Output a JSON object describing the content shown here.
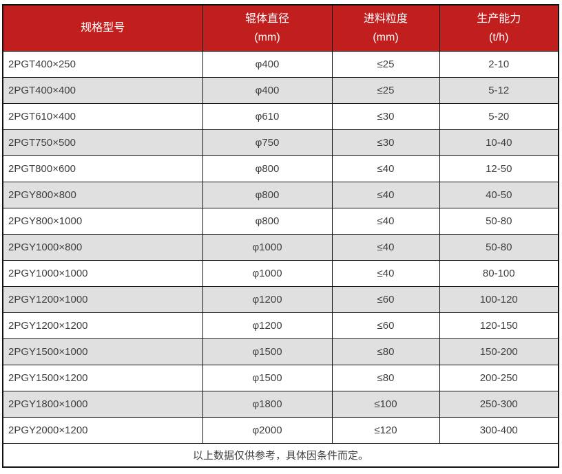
{
  "table": {
    "accent_color": "#c11e1e",
    "header_text_color": "#ffffff",
    "body_text_color": "#3f3f3f",
    "stripe_color": "#e0e0e0",
    "border_color": "#111111",
    "columns": [
      {
        "label": "规格型号",
        "unit": ""
      },
      {
        "label": "辊体直径",
        "unit": "(mm)"
      },
      {
        "label": "进料粒度",
        "unit": "(mm)"
      },
      {
        "label": "生产能力",
        "unit": "(t/h)"
      }
    ],
    "rows": [
      [
        "2PGT400×250",
        "φ400",
        "≤25",
        "2-10"
      ],
      [
        "2PGT400×400",
        "φ400",
        "≤25",
        "5-12"
      ],
      [
        "2PGT610×400",
        "φ610",
        "≤30",
        "5-20"
      ],
      [
        "2PGT750×500",
        "φ750",
        "≤30",
        "10-40"
      ],
      [
        "2PGT800×600",
        "φ800",
        "≤40",
        "12-50"
      ],
      [
        "2PGY800×800",
        "φ800",
        "≤40",
        "40-50"
      ],
      [
        "2PGY800×1000",
        "φ800",
        "≤40",
        "50-80"
      ],
      [
        "2PGY1000×800",
        "φ1000",
        "≤40",
        "50-80"
      ],
      [
        "2PGY1000×1000",
        "φ1000",
        "≤40",
        "80-100"
      ],
      [
        "2PGY1200×1000",
        "φ1200",
        "≤60",
        "100-120"
      ],
      [
        "2PGY1200×1200",
        "φ1200",
        "≤60",
        "120-150"
      ],
      [
        "2PGY1500×1000",
        "φ1500",
        "≤80",
        "150-200"
      ],
      [
        "2PGY1500×1200",
        "φ1500",
        "≤80",
        "200-250"
      ],
      [
        "2PGY1800×1000",
        "φ1800",
        "≤100",
        "250-300"
      ],
      [
        "2PGY2000×1200",
        "φ2000",
        "≤120",
        "300-400"
      ]
    ],
    "footnote": "以上数据仅供参考，具体因条件而定。"
  }
}
